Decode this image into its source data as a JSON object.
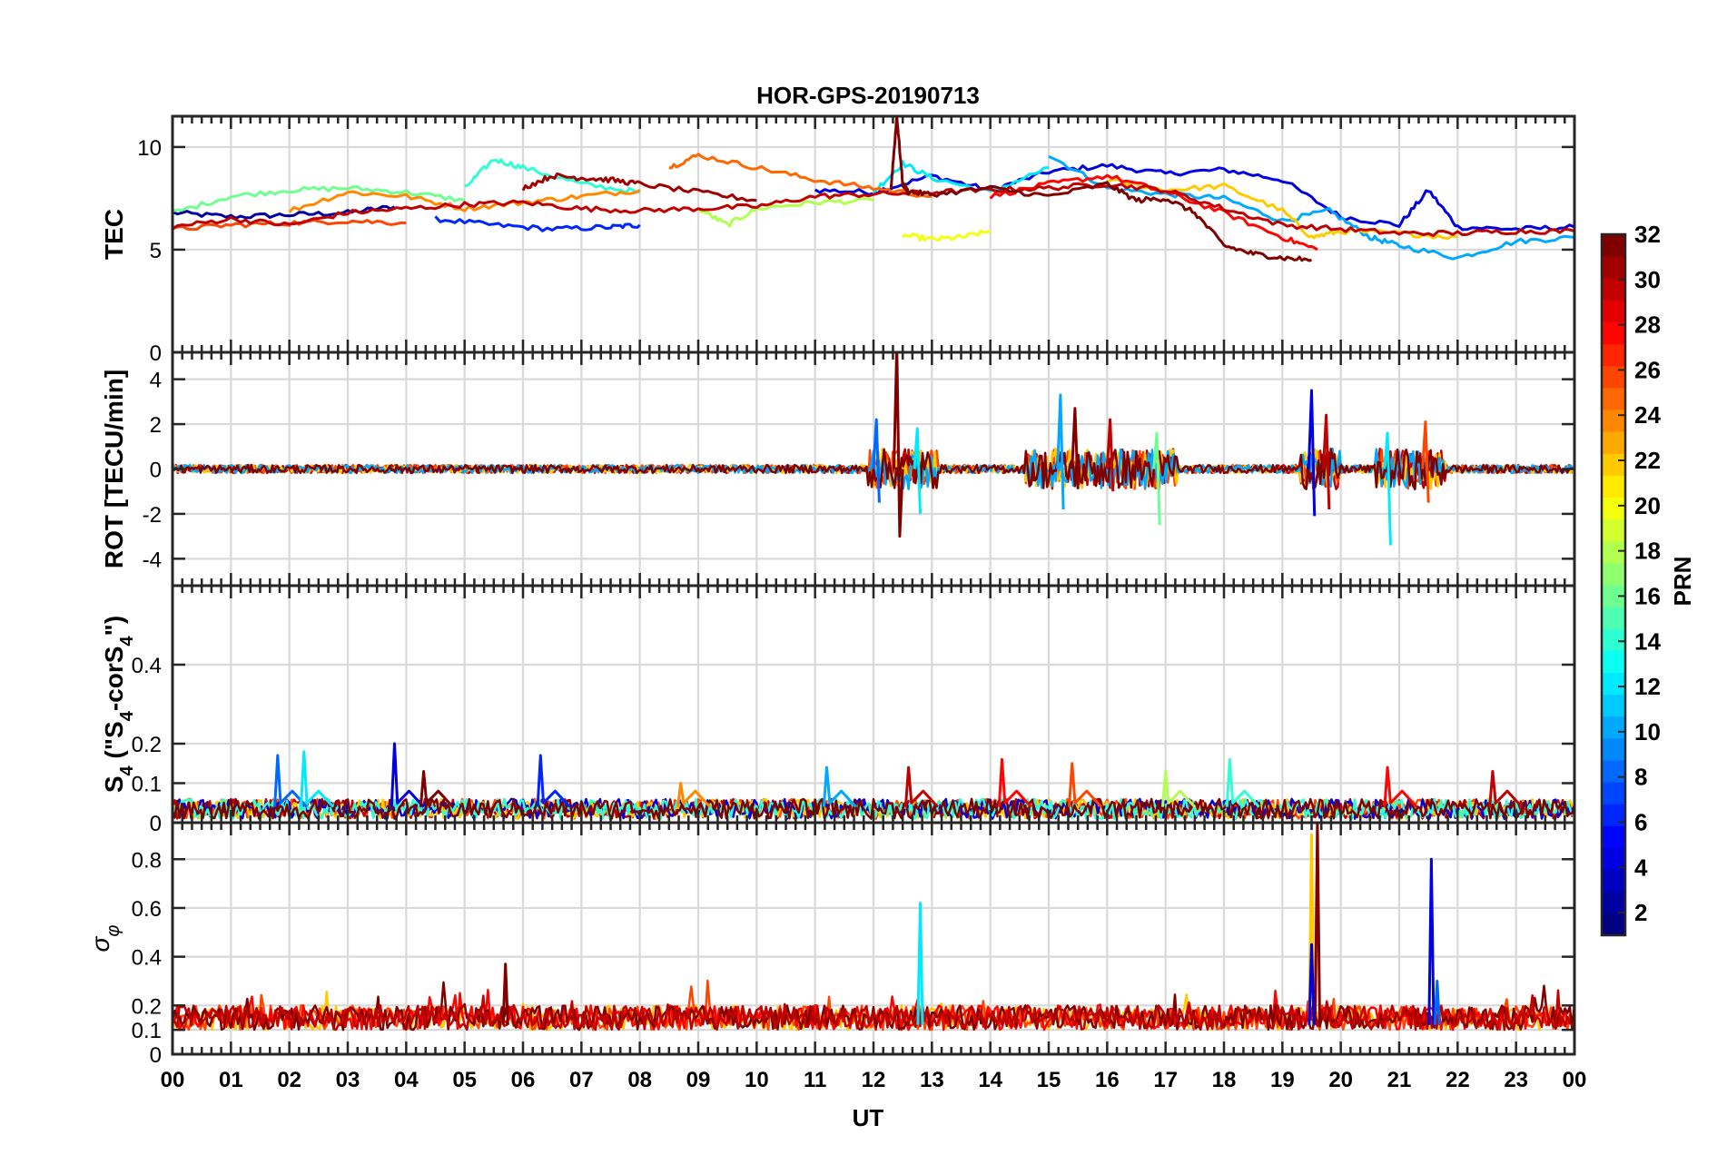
{
  "chart_data": [
    {
      "type": "line",
      "title": "HOR-GPS-20190713",
      "ylabel": "TEC",
      "x_unit": "UT hour",
      "xlim": [
        0,
        24
      ],
      "ylim": [
        0,
        11.5
      ],
      "yticks": [
        0,
        5,
        10
      ],
      "grid": true,
      "series_color_by": "PRN",
      "series": [
        {
          "prn": 2,
          "x": [
            0.0,
            1.0,
            2.0,
            3.0,
            3.8
          ],
          "y": [
            6.8,
            6.6,
            6.7,
            6.8,
            7.1
          ]
        },
        {
          "prn": 4,
          "x": [
            11.0,
            12.0,
            13.0,
            14.0,
            15.0,
            16.0,
            17.0,
            18.0,
            19.0,
            20.0,
            21.0,
            21.5,
            22.0,
            23.0,
            24.0
          ],
          "y": [
            7.9,
            7.8,
            8.6,
            7.9,
            8.8,
            9.1,
            8.7,
            8.9,
            8.4,
            6.6,
            6.2,
            7.9,
            6.1,
            6.0,
            6.1
          ]
        },
        {
          "prn": 6,
          "x": [
            4.5,
            5.5,
            6.5,
            7.5,
            8.0
          ],
          "y": [
            6.5,
            6.2,
            6.0,
            6.1,
            6.2
          ]
        },
        {
          "prn": 10,
          "x": [
            15.0,
            16.0,
            17.0,
            18.0,
            19.0,
            19.8,
            20.5,
            21.0,
            22.0,
            23.0,
            24.0
          ],
          "y": [
            9.6,
            8.0,
            7.7,
            7.5,
            6.4,
            6.9,
            5.6,
            5.2,
            4.6,
            5.4,
            5.6
          ]
        },
        {
          "prn": 12,
          "x": [
            12.0,
            12.5,
            13.0,
            14.0,
            15.0
          ],
          "y": [
            7.8,
            9.2,
            8.5,
            7.8,
            9.0
          ]
        },
        {
          "prn": 14,
          "x": [
            5.0,
            5.5,
            6.0,
            7.0,
            8.0
          ],
          "y": [
            8.0,
            9.4,
            9.0,
            8.2,
            7.8
          ]
        },
        {
          "prn": 16,
          "x": [
            0.0,
            1.0,
            2.0,
            3.0,
            4.0,
            5.0
          ],
          "y": [
            6.8,
            7.6,
            7.9,
            8.0,
            7.8,
            7.4
          ]
        },
        {
          "prn": 18,
          "x": [
            9.0,
            9.5,
            10.0,
            11.0,
            12.0
          ],
          "y": [
            7.0,
            6.2,
            7.0,
            7.3,
            7.4
          ]
        },
        {
          "prn": 20,
          "x": [
            12.5,
            13.0,
            13.5,
            14.0
          ],
          "y": [
            5.7,
            5.5,
            5.6,
            5.9
          ]
        },
        {
          "prn": 22,
          "x": [
            16.0,
            17.0,
            18.0,
            19.0,
            19.5,
            20.0,
            21.0,
            22.0
          ],
          "y": [
            8.4,
            7.9,
            8.1,
            6.9,
            5.6,
            5.9,
            5.8,
            5.6
          ]
        },
        {
          "prn": 24,
          "x": [
            2.0,
            3.0,
            4.0,
            5.0,
            6.0,
            7.0,
            8.0
          ],
          "y": [
            6.9,
            7.8,
            7.6,
            7.0,
            7.3,
            7.6,
            7.9
          ]
        },
        {
          "prn": 25,
          "x": [
            8.5,
            9.0,
            10.0,
            11.0,
            12.0,
            13.0
          ],
          "y": [
            9.0,
            9.6,
            9.0,
            8.4,
            8.0,
            7.6
          ]
        },
        {
          "prn": 26,
          "x": [
            0.0,
            1.0,
            2.0,
            3.0,
            4.0
          ],
          "y": [
            6.0,
            6.2,
            6.3,
            6.4,
            6.3
          ]
        },
        {
          "prn": 28,
          "x": [
            14.0,
            15.0,
            16.0,
            17.0,
            18.0,
            19.0,
            19.6
          ],
          "y": [
            7.6,
            8.2,
            8.6,
            7.8,
            6.8,
            5.6,
            5.0
          ]
        },
        {
          "prn": 30,
          "x": [
            0.0,
            1.0,
            2.0,
            3.0,
            4.0,
            5.0,
            6.0,
            7.0,
            8.0,
            9.0,
            10.0,
            11.0,
            12.0,
            13.0,
            14.0,
            15.0,
            16.0,
            17.0,
            18.0,
            19.0,
            20.0,
            21.0,
            22.0,
            23.0,
            24.0
          ],
          "y": [
            6.1,
            6.5,
            6.2,
            6.8,
            7.0,
            7.2,
            7.3,
            7.0,
            6.9,
            7.0,
            7.1,
            7.6,
            7.7,
            7.8,
            7.9,
            8.0,
            8.2,
            7.9,
            7.0,
            6.2,
            6.0,
            5.8,
            5.8,
            5.9,
            5.9
          ]
        },
        {
          "prn": 31,
          "x": [
            6.0,
            6.5,
            7.0,
            7.5,
            8.0,
            9.0,
            10.0
          ],
          "y": [
            8.0,
            8.6,
            8.5,
            8.4,
            8.2,
            7.8,
            7.4
          ]
        },
        {
          "prn": 32,
          "x": [
            12.3,
            12.4,
            12.5,
            12.6,
            13.0,
            14.0,
            15.0,
            16.0,
            16.5,
            17.0,
            17.5,
            18.0,
            18.5,
            19.0,
            19.5
          ],
          "y": [
            8.0,
            11.5,
            8.2,
            7.8,
            7.7,
            8.0,
            7.6,
            8.2,
            7.4,
            7.5,
            6.8,
            5.2,
            4.8,
            4.6,
            4.5
          ]
        }
      ]
    },
    {
      "type": "line",
      "ylabel": "ROT [TECU/min]",
      "x_unit": "UT hour",
      "xlim": [
        0,
        24
      ],
      "ylim": [
        -5.2,
        5.2
      ],
      "yticks": [
        -4,
        -2,
        0,
        2,
        4
      ],
      "grid": true,
      "series_color_by": "PRN",
      "spikes": [
        {
          "prn": 32,
          "x": [
            12.35,
            12.4,
            12.45,
            12.5
          ],
          "y": [
            0,
            5.5,
            -3.0,
            0
          ]
        },
        {
          "prn": 8,
          "x": [
            12.0,
            12.05,
            12.1
          ],
          "y": [
            0,
            2.2,
            -1.5
          ]
        },
        {
          "prn": 12,
          "x": [
            12.7,
            12.75,
            12.8
          ],
          "y": [
            0,
            1.8,
            -2.0
          ]
        },
        {
          "prn": 10,
          "x": [
            15.15,
            15.2,
            15.25
          ],
          "y": [
            0,
            3.3,
            -1.8
          ]
        },
        {
          "prn": 32,
          "x": [
            15.4,
            15.45,
            15.5
          ],
          "y": [
            0,
            2.7,
            -0.9
          ]
        },
        {
          "prn": 30,
          "x": [
            16.0,
            16.05,
            16.1
          ],
          "y": [
            0,
            2.2,
            -1.0
          ]
        },
        {
          "prn": 16,
          "x": [
            16.8,
            16.85,
            16.9
          ],
          "y": [
            0,
            1.6,
            -2.5
          ]
        },
        {
          "prn": 4,
          "x": [
            19.45,
            19.5,
            19.55
          ],
          "y": [
            0,
            3.5,
            -2.1
          ]
        },
        {
          "prn": 30,
          "x": [
            19.7,
            19.75,
            19.8
          ],
          "y": [
            0,
            2.4,
            -1.8
          ]
        },
        {
          "prn": 12,
          "x": [
            20.75,
            20.8,
            20.85
          ],
          "y": [
            0,
            1.6,
            -3.4
          ]
        },
        {
          "prn": 26,
          "x": [
            21.4,
            21.45,
            21.5
          ],
          "y": [
            0,
            2.1,
            -1.5
          ]
        }
      ]
    },
    {
      "type": "line",
      "ylabel": "S_4 (\"S_4-corS_4\")",
      "x_unit": "UT hour",
      "xlim": [
        0,
        24
      ],
      "ylim": [
        0,
        0.6
      ],
      "yticks": [
        0,
        0.1,
        0.2,
        0.4
      ],
      "grid": true,
      "series_color_by": "PRN",
      "spikes": [
        {
          "prn": 8,
          "x": 1.8,
          "y": 0.17
        },
        {
          "prn": 12,
          "x": 2.25,
          "y": 0.18
        },
        {
          "prn": 4,
          "x": 3.8,
          "y": 0.2
        },
        {
          "prn": 32,
          "x": 4.3,
          "y": 0.13
        },
        {
          "prn": 6,
          "x": 6.3,
          "y": 0.17
        },
        {
          "prn": 24,
          "x": 8.7,
          "y": 0.1
        },
        {
          "prn": 10,
          "x": 11.2,
          "y": 0.14
        },
        {
          "prn": 30,
          "x": 12.6,
          "y": 0.14
        },
        {
          "prn": 28,
          "x": 14.2,
          "y": 0.16
        },
        {
          "prn": 26,
          "x": 15.4,
          "y": 0.15
        },
        {
          "prn": 18,
          "x": 17.0,
          "y": 0.13
        },
        {
          "prn": 14,
          "x": 18.1,
          "y": 0.16
        },
        {
          "prn": 28,
          "x": 20.8,
          "y": 0.14
        },
        {
          "prn": 30,
          "x": 22.6,
          "y": 0.13
        }
      ]
    },
    {
      "type": "line",
      "ylabel": "σ_φ",
      "xlabel": "UT",
      "x_unit": "UT hour",
      "xlim": [
        0,
        24
      ],
      "ylim": [
        0,
        0.95
      ],
      "yticks": [
        0,
        0.1,
        0.2,
        0.4,
        0.6,
        0.8
      ],
      "xticks": [
        "00",
        "01",
        "02",
        "03",
        "04",
        "05",
        "06",
        "07",
        "08",
        "09",
        "10",
        "11",
        "12",
        "13",
        "14",
        "15",
        "16",
        "17",
        "18",
        "19",
        "20",
        "21",
        "22",
        "23",
        "00"
      ],
      "grid": true,
      "series_color_by": "PRN",
      "spikes": [
        {
          "prn": 12,
          "x": 12.8,
          "y": 0.62
        },
        {
          "prn": 32,
          "x": 5.7,
          "y": 0.37
        },
        {
          "prn": 22,
          "x": 19.5,
          "y": 0.9
        },
        {
          "prn": 32,
          "x": 19.6,
          "y": 0.95
        },
        {
          "prn": 4,
          "x": 19.5,
          "y": 0.45
        },
        {
          "prn": 4,
          "x": 21.55,
          "y": 0.8
        },
        {
          "prn": 8,
          "x": 21.65,
          "y": 0.3
        }
      ]
    }
  ],
  "colorbar": {
    "label": "PRN",
    "range": [
      1,
      32
    ],
    "ticks": [
      "2",
      "4",
      "6",
      "8",
      "10",
      "12",
      "14",
      "16",
      "18",
      "20",
      "22",
      "24",
      "26",
      "28",
      "30",
      "32"
    ]
  }
}
